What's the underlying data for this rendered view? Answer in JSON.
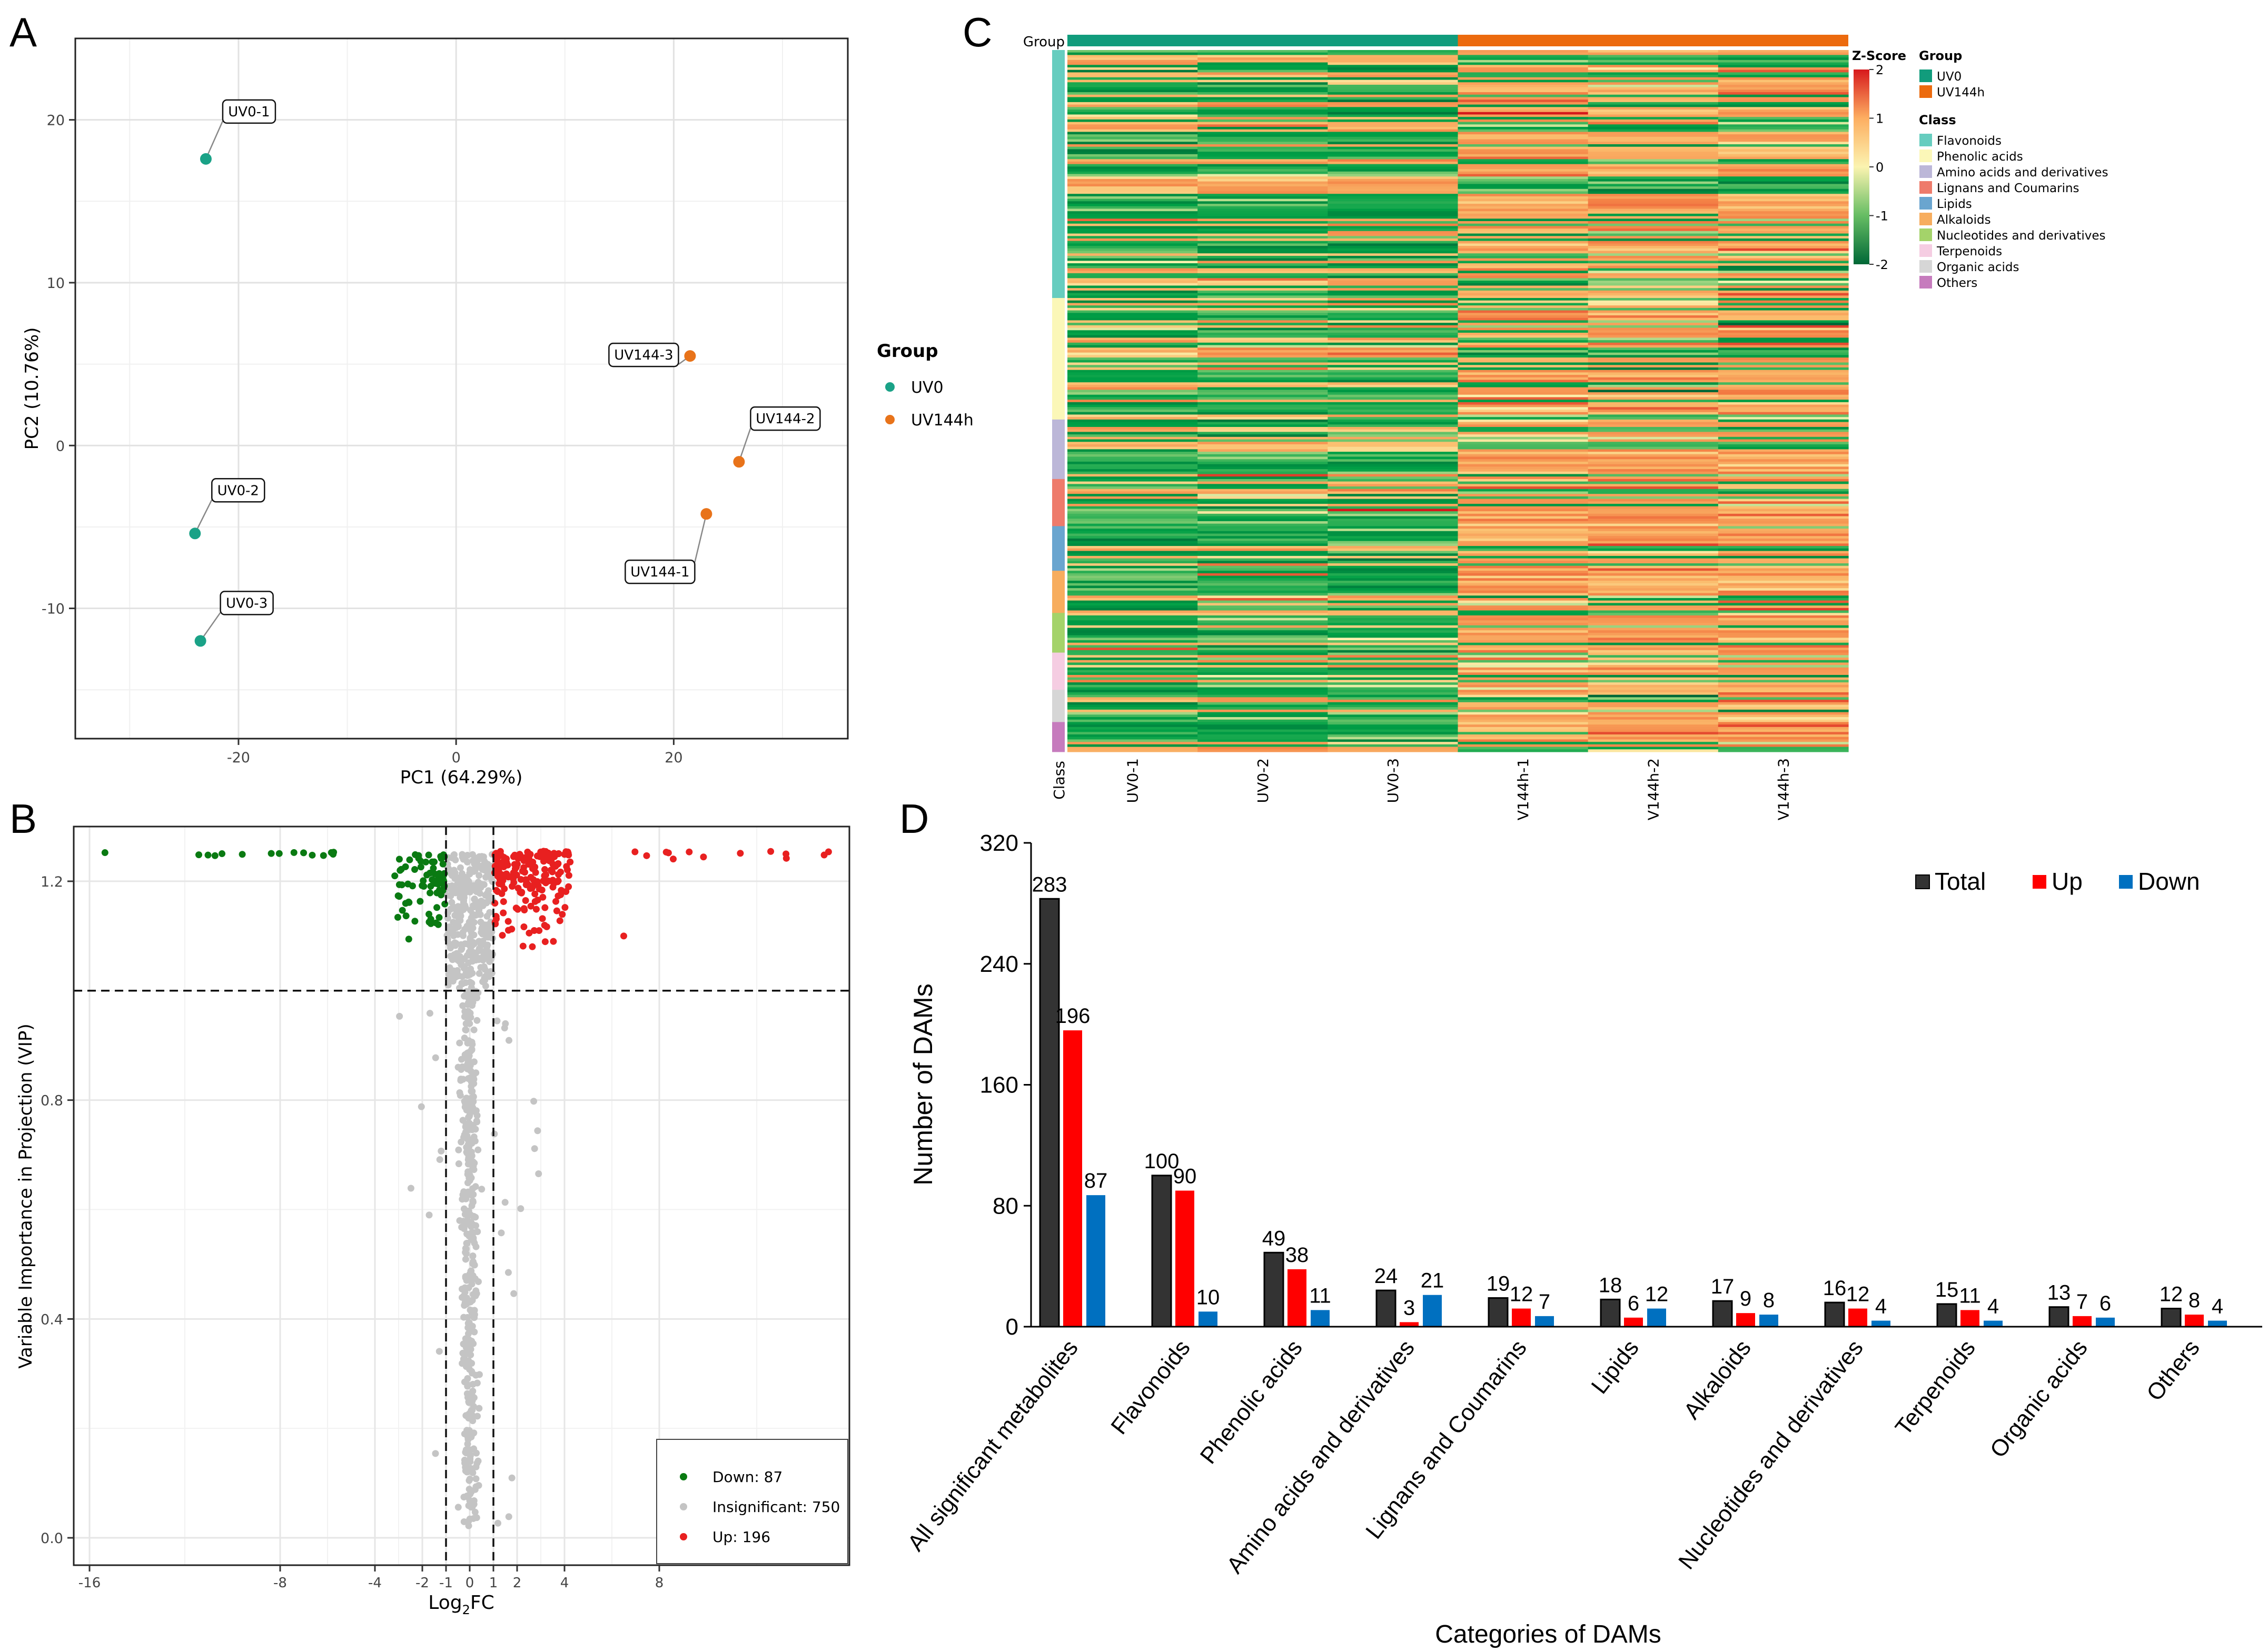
{
  "panel_labels": {
    "a": "A",
    "b": "B",
    "c": "C",
    "d": "D"
  },
  "colors": {
    "uv0": "#1aa287",
    "uv144": "#e8731a",
    "down": "#0a7a12",
    "insig": "#c4c4c4",
    "up": "#e82020",
    "total": "#333333",
    "bar_up": "#ff0000",
    "bar_down": "#0070c0",
    "group_uv0": "#119c7c",
    "group_uv144": "#ec6a0e",
    "heat_low": "#009b45",
    "heat_mid": "#fbf3b0",
    "heat_high": "#d7191c"
  },
  "chart_data": [
    {
      "panel": "A",
      "type": "scatter",
      "xlabel": "PC1 (64.29%)",
      "ylabel": "PC2 (10.76%)",
      "xlim": [
        -35,
        36
      ],
      "ylim": [
        -18,
        25
      ],
      "xticks": [
        -20,
        0,
        20
      ],
      "yticks": [
        -10,
        0,
        10,
        20
      ],
      "x_minor_gridlines": [
        -30,
        -10,
        10,
        30
      ],
      "y_minor_gridlines": [
        -15,
        -5,
        5,
        15
      ],
      "legend": {
        "title": "Group",
        "entries": [
          "UV0",
          "UV144h"
        ]
      },
      "points": [
        {
          "label": "UV0-1",
          "group": "UV0",
          "x": -23,
          "y": 17.6
        },
        {
          "label": "UV0-2",
          "group": "UV0",
          "x": -24,
          "y": -5.4
        },
        {
          "label": "UV0-3",
          "group": "UV0",
          "x": -23.5,
          "y": -12
        },
        {
          "label": "UV144-3",
          "group": "UV144h",
          "x": 21.5,
          "y": 5.5
        },
        {
          "label": "UV144-2",
          "group": "UV144h",
          "x": 26,
          "y": -1
        },
        {
          "label": "UV144-1",
          "group": "UV144h",
          "x": 23,
          "y": -4.2
        }
      ]
    },
    {
      "panel": "B",
      "type": "scatter",
      "subtype": "volcano",
      "xlabel": "Log",
      "xlabel_sub": "2",
      "xlabel_tail": "FC",
      "ylabel": "Variable Importance in Projection (VIP)",
      "xlim": [
        -16.8,
        15.8
      ],
      "ylim": [
        -0.05,
        1.3
      ],
      "xticks": [
        -16,
        -8,
        -4,
        -2,
        -1,
        0,
        1,
        2,
        4,
        8
      ],
      "yticks": [
        0.0,
        0.4,
        0.8,
        1.2
      ],
      "yticklabels": [
        "0.0",
        "0.4",
        "0.8",
        "1.2"
      ],
      "thresholds": {
        "log2fc": [
          -1,
          1
        ],
        "vip": 1.0
      },
      "legend": {
        "placement": "bottom-right",
        "entries": [
          {
            "key": "down",
            "label": "Down: 87"
          },
          {
            "key": "insig",
            "label": "Insignificant: 750"
          },
          {
            "key": "up",
            "label": "Up: 196"
          }
        ]
      },
      "counts": {
        "down": 87,
        "insignificant": 750,
        "up": 196
      }
    },
    {
      "panel": "C",
      "type": "heatmap",
      "columns": [
        "UV0-1",
        "UV0-2",
        "UV0-3",
        "V144h-1",
        "V144h-2",
        "V144h-3"
      ],
      "group_track_label": "Group",
      "class_track_label": "Class",
      "groups": [
        {
          "name": "UV0",
          "columns": 3
        },
        {
          "name": "UV144h",
          "columns": 3
        }
      ],
      "zscore": {
        "title": "Z-Score",
        "min": -2,
        "max": 2,
        "ticks": [
          "2",
          "1",
          "0",
          "-1",
          "-2"
        ]
      },
      "legend_group_title": "Group",
      "legend_groups": [
        "UV0",
        "UV144h"
      ],
      "legend_class_title": "Class",
      "classes": [
        {
          "name": "Flavonoids",
          "color": "#66cdbf",
          "rows": 100
        },
        {
          "name": "Phenolic acids",
          "color": "#fbf7b8",
          "rows": 49
        },
        {
          "name": "Amino acids and derivatives",
          "color": "#bcb7d8",
          "rows": 24
        },
        {
          "name": "Lignans and Coumarins",
          "color": "#ee7b6b",
          "rows": 19
        },
        {
          "name": "Lipids",
          "color": "#6aa5cf",
          "rows": 18
        },
        {
          "name": "Alkaloids",
          "color": "#f7ad5e",
          "rows": 17
        },
        {
          "name": "Nucleotides and derivatives",
          "color": "#a4d36a",
          "rows": 16
        },
        {
          "name": "Terpenoids",
          "color": "#f5cde2",
          "rows": 15
        },
        {
          "name": "Organic acids",
          "color": "#d6d6d6",
          "rows": 13
        },
        {
          "name": "Others",
          "color": "#c67bbd",
          "rows": 12
        }
      ]
    },
    {
      "panel": "D",
      "type": "bar",
      "xlabel": "Categories of DAMs",
      "ylabel": "Number of DAMs",
      "ylim": [
        0,
        320
      ],
      "yticks": [
        0,
        80,
        160,
        240,
        320
      ],
      "legend": {
        "placement": "top-right",
        "entries": [
          "Total",
          "Up",
          "Down"
        ]
      },
      "categories": [
        "All significant metabolites",
        "Flavonoids",
        "Phenolic acids",
        "Amino acids and derivatives",
        "Lignans and Coumarins",
        "Lipids",
        "Alkaloids",
        "Nucleotides and derivatives",
        "Terpenoids",
        "Organic acids",
        "Others"
      ],
      "series": [
        {
          "name": "Total",
          "values": [
            283,
            100,
            49,
            24,
            19,
            18,
            17,
            16,
            15,
            13,
            12
          ]
        },
        {
          "name": "Up",
          "values": [
            196,
            90,
            38,
            3,
            12,
            6,
            9,
            12,
            11,
            7,
            8
          ]
        },
        {
          "name": "Down",
          "values": [
            87,
            10,
            11,
            21,
            7,
            12,
            8,
            4,
            4,
            6,
            4
          ]
        }
      ]
    }
  ]
}
